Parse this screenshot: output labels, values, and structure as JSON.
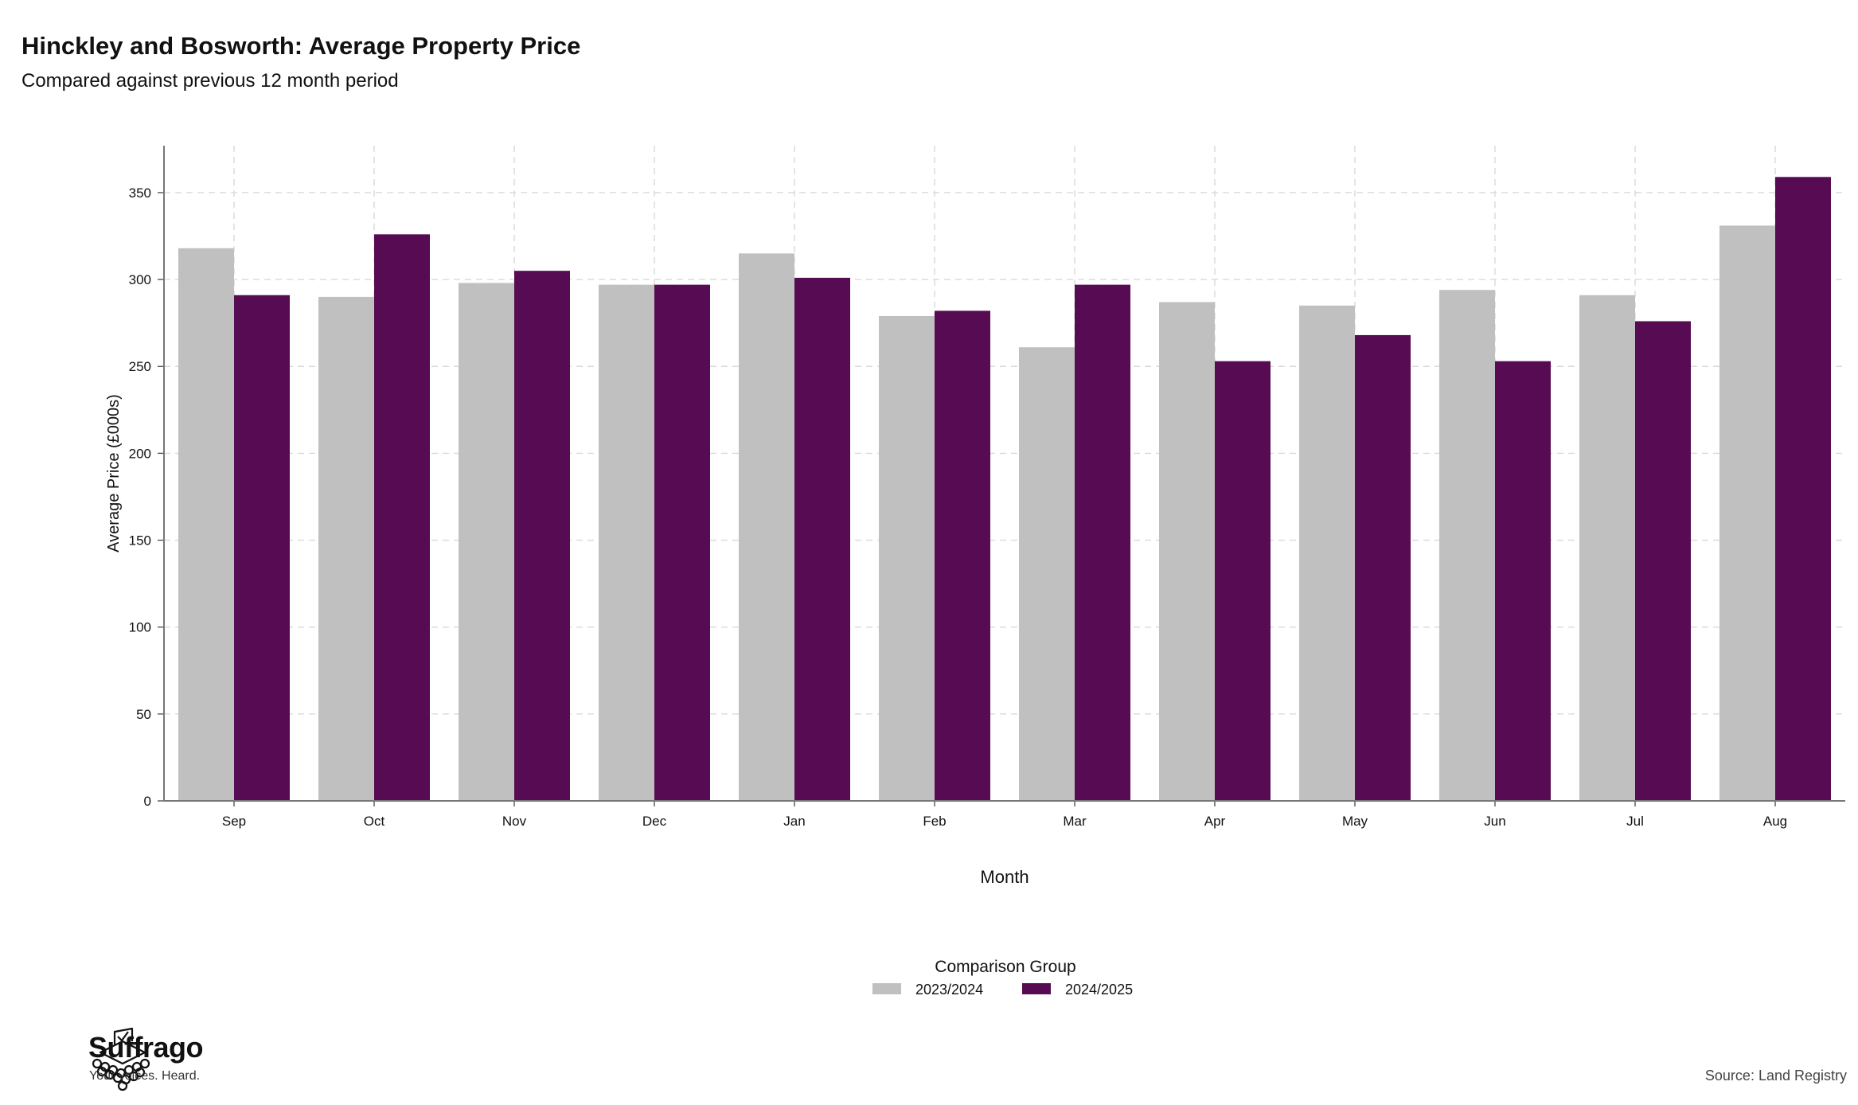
{
  "header": {
    "title": "Hinckley and Bosworth: Average Property Price",
    "subtitle": "Compared against previous 12 month period"
  },
  "footer": {
    "brand_name": "Suffrago",
    "brand_tagline": "Your voices. Heard.",
    "source": "Source: Land Registry"
  },
  "chart_data": {
    "type": "bar",
    "title": "Hinckley and Bosworth: Average Property Price",
    "subtitle": "Compared against previous 12 month period",
    "xlabel": "Month",
    "ylabel": "Average Price (£000s)",
    "categories": [
      "Sep",
      "Oct",
      "Nov",
      "Dec",
      "Jan",
      "Feb",
      "Mar",
      "Apr",
      "May",
      "Jun",
      "Jul",
      "Aug"
    ],
    "series": [
      {
        "name": "2023/2024",
        "color": "#c0c0c0",
        "values": [
          318,
          290,
          298,
          297,
          315,
          279,
          261,
          287,
          285,
          294,
          291,
          331
        ]
      },
      {
        "name": "2024/2025",
        "color": "#560b52",
        "values": [
          291,
          326,
          305,
          297,
          301,
          282,
          297,
          253,
          268,
          253,
          276,
          359
        ]
      }
    ],
    "ylim": [
      0,
      377
    ],
    "yticks": [
      0,
      50,
      100,
      150,
      200,
      250,
      300,
      350
    ],
    "grid": true,
    "legend": {
      "title": "Comparison Group",
      "placement": "bottom-center"
    }
  }
}
